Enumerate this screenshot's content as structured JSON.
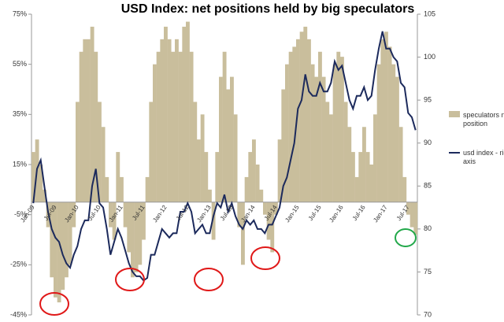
{
  "chart_data": {
    "type": "bar_line",
    "title": "USD Index: net positions held by big speculators",
    "categories": [
      "Jan-09",
      null,
      null,
      null,
      null,
      null,
      "Jul-09",
      null,
      null,
      null,
      null,
      null,
      "Jan-10",
      null,
      null,
      null,
      null,
      null,
      "Jul-10",
      null,
      null,
      null,
      null,
      null,
      "Jan-11",
      null,
      null,
      null,
      null,
      null,
      "Jul-11",
      null,
      null,
      null,
      null,
      null,
      "Jan-12",
      null,
      null,
      null,
      null,
      null,
      "Jul-12",
      null,
      null,
      null,
      null,
      null,
      "Jan-13",
      null,
      null,
      null,
      null,
      null,
      "Jul-13",
      null,
      null,
      null,
      null,
      null,
      "Jan-14",
      null,
      null,
      null,
      null,
      null,
      "Jul-14",
      null,
      null,
      null,
      null,
      null,
      "Jan-15",
      null,
      null,
      null,
      null,
      null,
      "Jul-15",
      null,
      null,
      null,
      null,
      null,
      "Jan-16",
      null,
      null,
      null,
      null,
      null,
      "Jul-16",
      null,
      null,
      null,
      null,
      null,
      "Jan-17",
      null,
      null,
      null,
      null,
      null,
      "Jul-17",
      null,
      null
    ],
    "series": [
      {
        "name": "speculators net position",
        "type": "bar",
        "color": "#c9be9c",
        "values": [
          20,
          25,
          15,
          5,
          -10,
          -30,
          -38,
          -40,
          -35,
          -30,
          -25,
          -10,
          40,
          60,
          65,
          65,
          70,
          60,
          40,
          30,
          10,
          -10,
          -15,
          20,
          10,
          -10,
          -20,
          -30,
          -28,
          -25,
          -15,
          10,
          40,
          55,
          60,
          65,
          70,
          65,
          60,
          65,
          60,
          70,
          72,
          60,
          40,
          25,
          35,
          20,
          5,
          -15,
          20,
          50,
          60,
          45,
          50,
          35,
          -10,
          -25,
          10,
          20,
          25,
          15,
          5,
          -5,
          -15,
          -20,
          -5,
          25,
          45,
          55,
          60,
          62,
          65,
          68,
          70,
          65,
          55,
          50,
          60,
          50,
          40,
          35,
          55,
          60,
          58,
          40,
          30,
          20,
          10,
          20,
          30,
          20,
          15,
          35,
          55,
          65,
          68,
          62,
          55,
          50,
          30,
          10,
          -5,
          -10,
          -13
        ]
      },
      {
        "name": "usd index - right axis",
        "type": "line",
        "axis": "y2",
        "color": "#1c2a5c",
        "values": [
          83,
          87,
          88,
          85,
          82,
          80,
          79,
          78.5,
          77,
          76,
          75.5,
          77,
          78,
          80,
          81,
          81,
          85,
          87,
          83,
          82.5,
          80,
          77,
          78.5,
          80,
          79,
          77.5,
          76,
          75,
          74.5,
          74.5,
          74,
          74.3,
          77,
          77,
          78.5,
          80,
          79.5,
          79,
          79.5,
          79.5,
          82,
          82,
          83,
          82,
          79.5,
          80,
          80.5,
          79.5,
          79.5,
          81.5,
          83,
          82.5,
          84,
          82,
          83,
          81.5,
          80.5,
          80,
          81,
          80.5,
          81,
          80,
          80,
          79.5,
          80.5,
          80.5,
          81.5,
          82.5,
          85,
          86,
          88,
          90,
          94,
          95,
          98,
          96,
          95.5,
          95.5,
          97,
          96,
          96,
          97,
          99.5,
          98.5,
          99,
          97,
          95,
          94,
          95.5,
          95.5,
          96.5,
          95,
          95.5,
          98.5,
          101,
          103,
          101,
          101,
          100,
          99.5,
          97,
          96.5,
          93.5,
          93,
          91.5
        ]
      }
    ],
    "ylim": [
      -45,
      75
    ],
    "yticks": [
      {
        "value": -45,
        "label": "-45%"
      },
      {
        "value": -25,
        "label": "-25%"
      },
      {
        "value": -5,
        "label": "-5%"
      },
      {
        "value": 15,
        "label": "15%"
      },
      {
        "value": 35,
        "label": "35%"
      },
      {
        "value": 55,
        "label": "55%"
      },
      {
        "value": 75,
        "label": "75%"
      }
    ],
    "y2lim": [
      70,
      105
    ],
    "y2ticks": [
      70,
      75,
      80,
      85,
      90,
      95,
      100,
      105
    ],
    "legend": "right",
    "grid": false
  }
}
